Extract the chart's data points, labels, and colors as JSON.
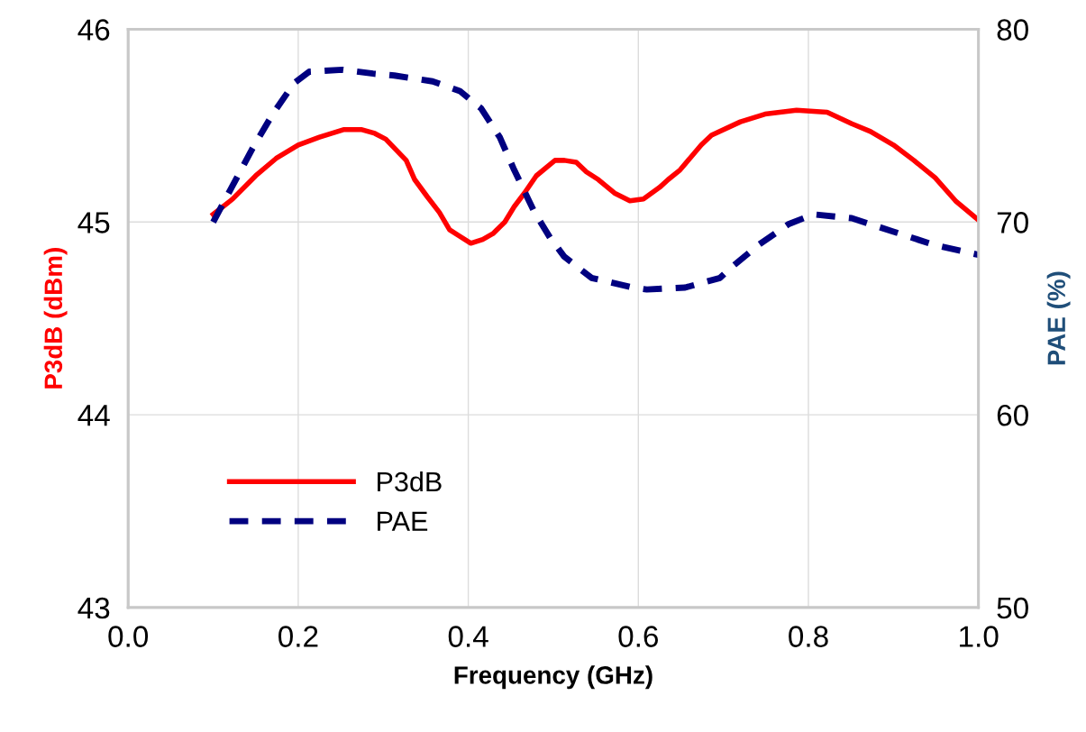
{
  "chart_data": {
    "type": "line",
    "xlabel": "Frequency (GHz)",
    "ylabel": "P3dB (dBm)",
    "y2label": "PAE (%)",
    "xlim": [
      0.0,
      1.0
    ],
    "xticks": [
      {
        "value": 0.0,
        "label": "0.0"
      },
      0.2,
      0.4,
      0.6,
      0.8,
      {
        "value": 1.0,
        "label": "1.0"
      }
    ],
    "ylim": [
      43,
      46
    ],
    "yticks": [
      43,
      44,
      45,
      46
    ],
    "y2lim": [
      50,
      80
    ],
    "y2ticks": [
      50,
      60,
      70,
      80
    ],
    "grid": true,
    "legend": "lower left",
    "marker": "none",
    "series": [
      {
        "name": "P3dB",
        "color": "#ff0000",
        "line_style": "solid",
        "x": [
          0.1,
          0.123,
          0.15,
          0.174,
          0.2,
          0.225,
          0.254,
          0.274,
          0.29,
          0.303,
          0.327,
          0.337,
          0.352,
          0.366,
          0.378,
          0.403,
          0.417,
          0.429,
          0.443,
          0.454,
          0.466,
          0.48,
          0.502,
          0.513,
          0.527,
          0.539,
          0.553,
          0.572,
          0.59,
          0.606,
          0.625,
          0.635,
          0.649,
          0.674,
          0.686,
          0.72,
          0.749,
          0.786,
          0.822,
          0.851,
          0.873,
          0.9,
          0.924,
          0.949,
          0.973,
          1.0
        ],
        "values": [
          45.04,
          45.12,
          45.24,
          45.33,
          45.4,
          45.44,
          45.48,
          45.48,
          45.46,
          45.43,
          45.32,
          45.22,
          45.13,
          45.05,
          44.96,
          44.89,
          44.91,
          44.94,
          45.0,
          45.08,
          45.15,
          45.24,
          45.32,
          45.32,
          45.31,
          45.26,
          45.22,
          45.15,
          45.11,
          45.12,
          45.18,
          45.22,
          45.27,
          45.4,
          45.45,
          45.52,
          45.56,
          45.58,
          45.57,
          45.51,
          45.47,
          45.4,
          45.32,
          45.23,
          45.11,
          45.01
        ]
      },
      {
        "name": "PAE",
        "color": "#000080",
        "line_style": "dashed",
        "axis": "y2",
        "x": [
          0.1,
          0.123,
          0.146,
          0.17,
          0.195,
          0.213,
          0.252,
          0.288,
          0.313,
          0.358,
          0.39,
          0.415,
          0.437,
          0.454,
          0.478,
          0.496,
          0.513,
          0.545,
          0.594,
          0.61,
          0.655,
          0.696,
          0.708,
          0.741,
          0.777,
          0.806,
          0.851,
          0.9,
          0.949,
          1.0
        ],
        "values": [
          70.0,
          71.9,
          73.8,
          75.6,
          77.2,
          77.8,
          77.9,
          77.7,
          77.6,
          77.3,
          76.8,
          75.9,
          74.4,
          72.7,
          70.5,
          69.2,
          68.2,
          67.1,
          66.6,
          66.5,
          66.6,
          67.1,
          67.6,
          68.8,
          69.9,
          70.4,
          70.2,
          69.5,
          68.8,
          68.3
        ]
      }
    ]
  }
}
